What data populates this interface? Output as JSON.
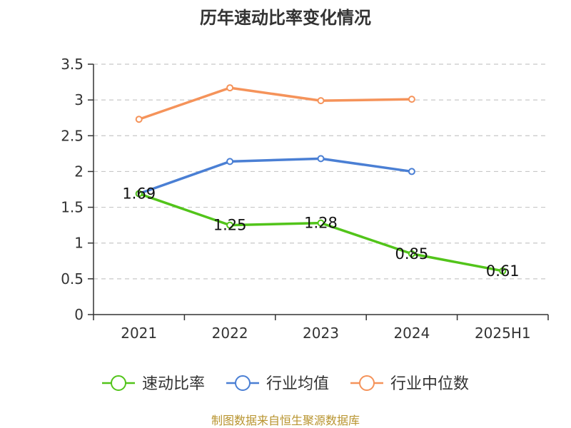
{
  "chart_data": {
    "type": "line",
    "title": "历年速动比率变化情况",
    "categories": [
      "2021",
      "2022",
      "2023",
      "2024",
      "2025H1"
    ],
    "ylim": [
      0,
      3.5
    ],
    "yticks": [
      "0",
      "0.5",
      "1",
      "1.5",
      "2",
      "2.5",
      "3",
      "3.5"
    ],
    "grid": true,
    "legend_position": "bottom",
    "series": [
      {
        "name": "速动比率",
        "color": "#52c41a",
        "values": [
          1.69,
          1.25,
          1.28,
          0.85,
          0.61
        ],
        "labels": [
          "1.69",
          "1.25",
          "1.28",
          "0.85",
          "0.61"
        ],
        "show_labels": true
      },
      {
        "name": "行业均值",
        "color": "#4a7fd4",
        "values": [
          1.69,
          2.14,
          2.18,
          2.0,
          null
        ],
        "show_labels": false
      },
      {
        "name": "行业中位数",
        "color": "#f5935a",
        "values": [
          2.73,
          3.17,
          2.99,
          3.01,
          null
        ],
        "show_labels": false
      }
    ],
    "source": "制图数据来自恒生聚源数据库"
  }
}
